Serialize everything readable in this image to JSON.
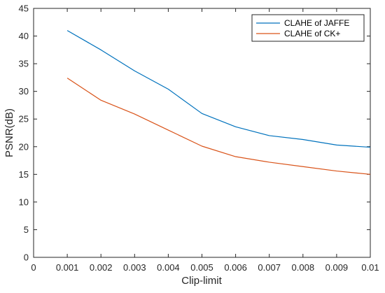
{
  "chart_data": {
    "type": "line",
    "xlabel": "Clip-limit",
    "ylabel": "PSNR(dB)",
    "xlim": [
      0,
      0.01
    ],
    "ylim": [
      0,
      45
    ],
    "xticks": [
      "0",
      "0.001",
      "0.002",
      "0.003",
      "0.004",
      "0.005",
      "0.006",
      "0.007",
      "0.008",
      "0.009",
      "0.01"
    ],
    "yticks": [
      "0",
      "5",
      "10",
      "15",
      "20",
      "25",
      "30",
      "35",
      "40",
      "45"
    ],
    "grid": false,
    "legend_position": "top-right",
    "x": [
      0.001,
      0.002,
      0.003,
      0.004,
      0.005,
      0.006,
      0.007,
      0.008,
      0.009,
      0.01
    ],
    "series": [
      {
        "name": "CLAHE of JAFFE",
        "color": "#0072bd",
        "values": [
          41.0,
          37.5,
          33.7,
          30.4,
          26.0,
          23.6,
          22.0,
          21.3,
          20.3,
          19.9
        ]
      },
      {
        "name": "CLAHE of CK+",
        "color": "#d95319",
        "values": [
          32.4,
          28.4,
          25.9,
          23.0,
          20.1,
          18.2,
          17.2,
          16.4,
          15.6,
          15.0
        ]
      }
    ]
  }
}
